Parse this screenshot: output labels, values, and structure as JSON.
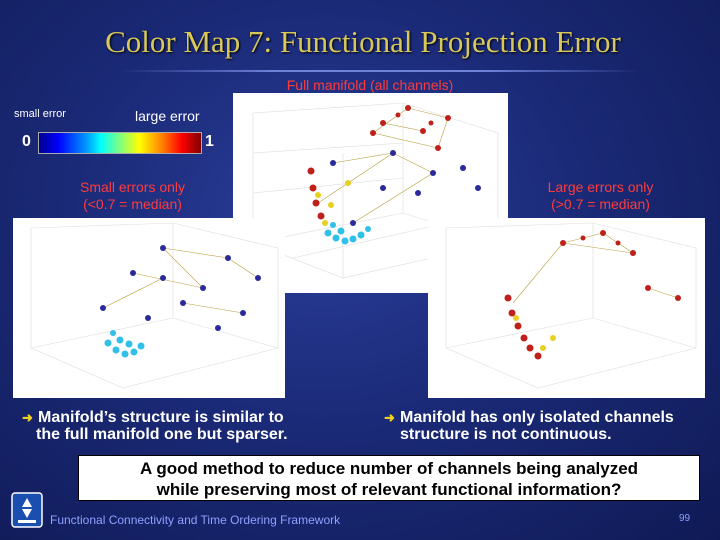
{
  "title": "Color Map 7: Functional Projection Error",
  "captions": {
    "full": "Full manifold (all channels)",
    "small_line1": "Small errors only",
    "small_line2": "(<0.7 = median)",
    "large_line1": "Large errors only",
    "large_line2": "(>0.7 = median)"
  },
  "colorbar": {
    "small_label": "small error",
    "large_label": "large error",
    "min": "0",
    "max": "1"
  },
  "bullets": {
    "left_line1": "Manifold’s structure is similar to",
    "left_line2": "the full manifold one but sparser.",
    "right_line1": "Manifold has only isolated channels",
    "right_line2": "structure is not continuous."
  },
  "question": {
    "line1": "A good method to reduce number of channels being analyzed",
    "line2": "while preserving most of relevant functional information?"
  },
  "footer": "Functional Connectivity and Time Ordering Framework",
  "page_number": "99",
  "icons": {
    "bullet": "arrow-bullet-icon",
    "logo": "university-logo-icon"
  },
  "colors": {
    "title": "#d8c85a",
    "caption": "#ff3b3b",
    "footer": "#8fa0ff"
  }
}
